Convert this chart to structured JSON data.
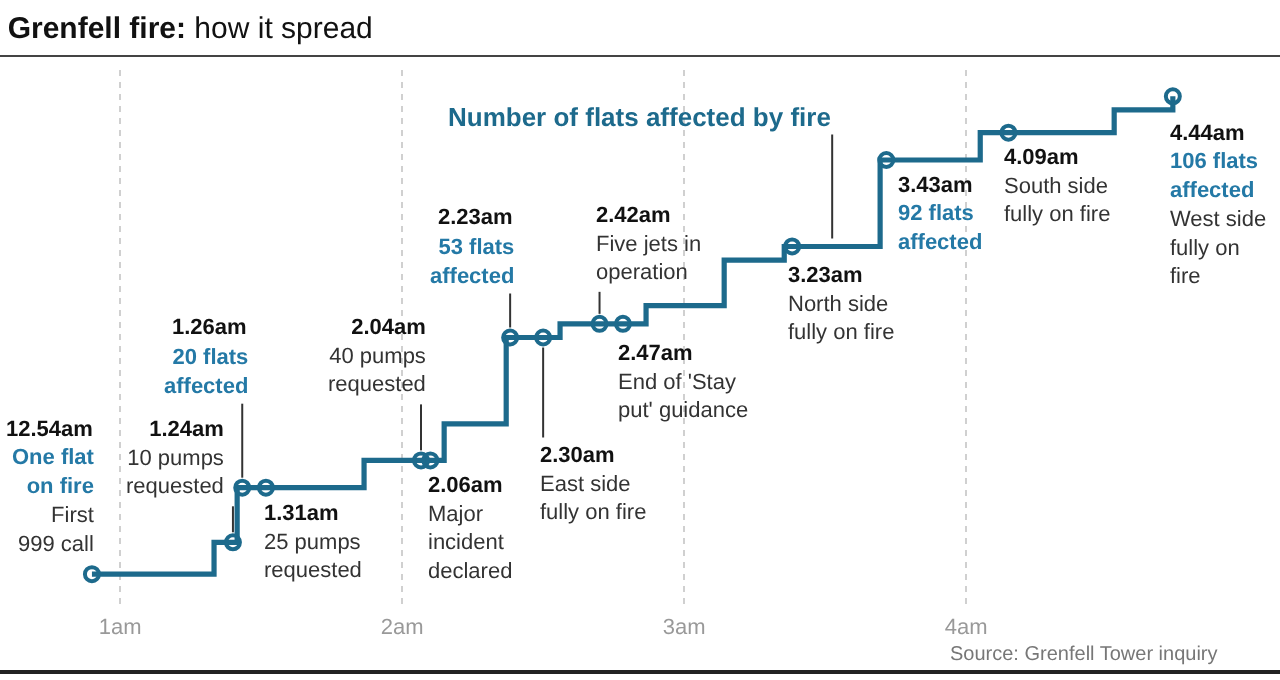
{
  "chart_data": {
    "type": "step",
    "title": "Grenfell fire: how it spread",
    "legend": false,
    "grid": "x",
    "xlim": [
      0.574,
      5.113
    ],
    "xticks": [
      {
        "value": 1,
        "label": "1am"
      },
      {
        "value": 2,
        "label": "2am"
      },
      {
        "value": 3,
        "label": "3am"
      },
      {
        "value": 4,
        "label": "4am"
      }
    ],
    "series": [
      {
        "name": "Number of flats affected by fire",
        "color": "#1d6a8c",
        "x": [
          0.9,
          1.333,
          1.415,
          1.865,
          2.149,
          2.369,
          2.56,
          2.865,
          3.142,
          3.355,
          3.695,
          4.05,
          4.525,
          4.733
        ],
        "values": [
          1,
          8,
          20,
          26,
          34,
          53,
          56,
          60,
          70,
          73,
          92,
          98,
          103,
          106
        ]
      },
      {
        "type": "scatter",
        "marker": "circle",
        "color": "#1d6a8c",
        "x": [
          0.9,
          1.4,
          1.433,
          1.517,
          2.067,
          2.1,
          2.383,
          2.5,
          2.7,
          2.783,
          3.383,
          3.717,
          4.15,
          4.733
        ],
        "values": [
          1,
          8,
          20,
          20,
          26,
          26,
          53,
          53,
          56,
          56,
          73,
          92,
          98,
          106
        ],
        "value_labels": [
          "One flat\non fire",
          null,
          "20 flats\naffected",
          null,
          null,
          null,
          "53 flats\naffected",
          null,
          null,
          null,
          null,
          "92 flats\naffected",
          null,
          "106 flats\naffected"
        ]
      }
    ],
    "annotations": [
      "12.54am",
      "First\n999 call",
      "1.24am\n10 pumps\nrequested",
      "1.26am",
      "1.31am\n25 pumps\nrequested",
      "2.04am\n40 pumps\nrequested",
      "2.06am\nMajor\nincident\ndeclared",
      "2.23am",
      "2.30am\nEast side\nfully on fire",
      "2.42am\nFive jets in\noperation",
      "2.47am\nEnd of 'Stay\nput' guidance",
      "3.23am\nNorth side\nfully on fire",
      "3.43am",
      "4.09am\nSouth side\nfully on fire",
      "4.44am",
      "West side\nfully on\nfire",
      "Source: Grenfell Tower inquiry"
    ]
  }
}
